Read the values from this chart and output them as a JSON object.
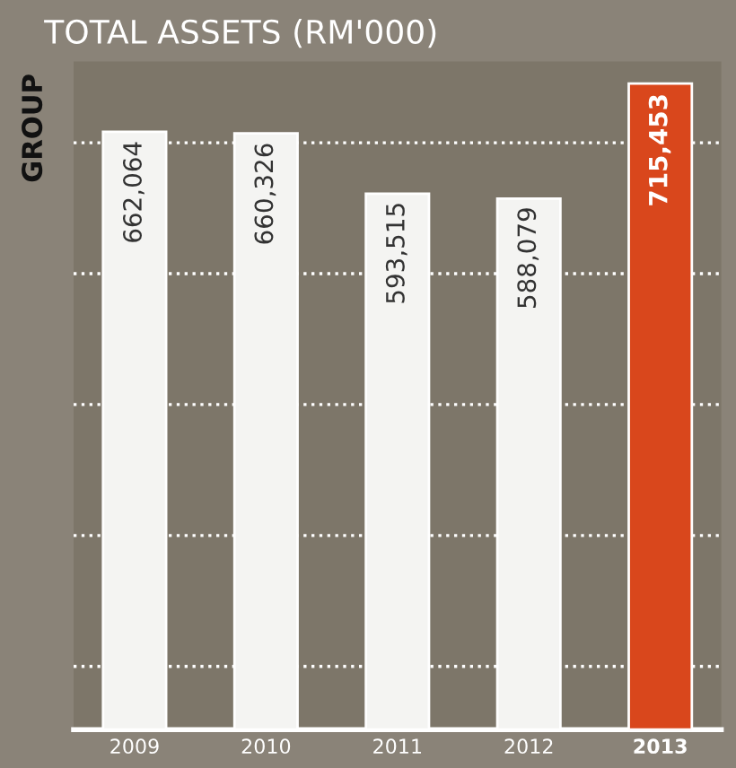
{
  "chart_data": {
    "type": "bar",
    "title": "TOTAL ASSETS (RM'000)",
    "ylabel": "GROUP",
    "categories": [
      "2009",
      "2010",
      "2011",
      "2012",
      "2013"
    ],
    "values": [
      662064,
      660326,
      593515,
      588079,
      715453
    ],
    "colors": [
      "#f4f4f2",
      "#f4f4f2",
      "#f4f4f2",
      "#f4f4f2",
      "#d9471c"
    ],
    "value_labels": [
      "662,064",
      "660,326",
      "593,515",
      "588,079",
      "715,453"
    ],
    "ylim": [
      0,
      740000
    ],
    "yticks": [
      {
        "value": 70000,
        "label": null
      },
      {
        "value": 215000,
        "label": null
      },
      {
        "value": 360000,
        "label": null
      },
      {
        "value": 505000,
        "label": null
      },
      {
        "value": 650000,
        "label": null
      }
    ],
    "grid": "y",
    "tick_labels": "x"
  }
}
